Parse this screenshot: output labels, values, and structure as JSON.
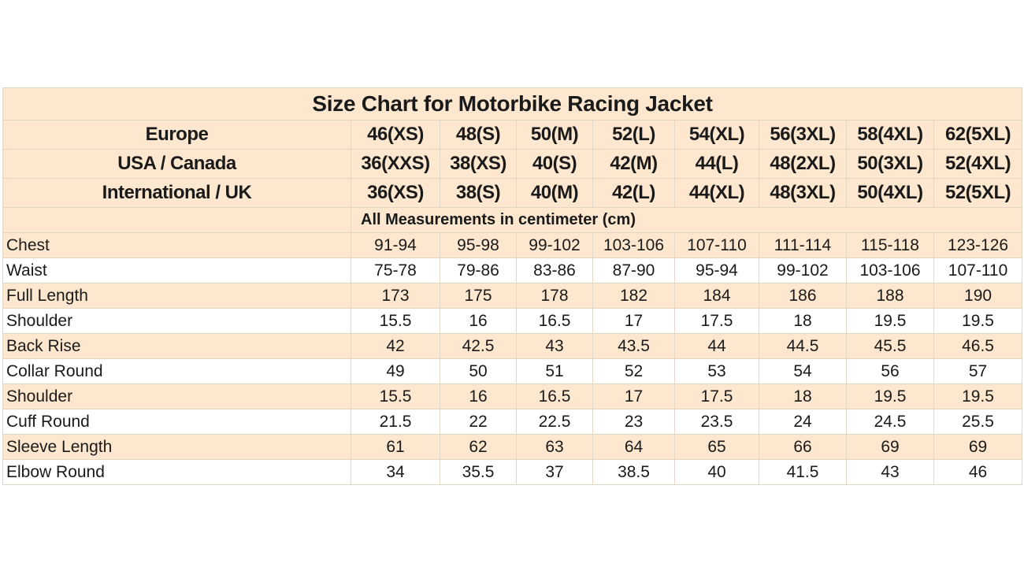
{
  "title": "Size Chart for Motorbike Racing Jacket",
  "size_rows": [
    {
      "label": "Europe",
      "sizes": [
        "46(XS)",
        "48(S)",
        "50(M)",
        "52(L)",
        "54(XL)",
        "56(3XL)",
        "58(4XL)",
        "62(5XL)"
      ]
    },
    {
      "label": "USA / Canada",
      "sizes": [
        "36(XXS)",
        "38(XS)",
        "40(S)",
        "42(M)",
        "44(L)",
        "48(2XL)",
        "50(3XL)",
        "52(4XL)"
      ]
    },
    {
      "label": "International / UK",
      "sizes": [
        "36(XS)",
        "38(S)",
        "40(M)",
        "42(L)",
        "44(XL)",
        "48(3XL)",
        "50(4XL)",
        "52(5XL)"
      ]
    }
  ],
  "units_note": "All Measurements in centimeter (cm)",
  "measurements": [
    {
      "label": "Chest",
      "values": [
        "91-94",
        "95-98",
        "99-102",
        "103-106",
        "107-110",
        "111-114",
        "115-118",
        "123-126"
      ]
    },
    {
      "label": "Waist",
      "values": [
        "75-78",
        "79-86",
        "83-86",
        "87-90",
        "95-94",
        "99-102",
        "103-106",
        "107-110"
      ]
    },
    {
      "label": "Full Length",
      "values": [
        "173",
        "175",
        "178",
        "182",
        "184",
        "186",
        "188",
        "190"
      ]
    },
    {
      "label": "Shoulder",
      "values": [
        "15.5",
        "16",
        "16.5",
        "17",
        "17.5",
        "18",
        "19.5",
        "19.5"
      ]
    },
    {
      "label": "Back Rise",
      "values": [
        "42",
        "42.5",
        "43",
        "43.5",
        "44",
        "44.5",
        "45.5",
        "46.5"
      ]
    },
    {
      "label": "Collar Round",
      "values": [
        "49",
        "50",
        "51",
        "52",
        "53",
        "54",
        "56",
        "57"
      ]
    },
    {
      "label": "Shoulder",
      "values": [
        "15.5",
        "16",
        "16.5",
        "17",
        "17.5",
        "18",
        "19.5",
        "19.5"
      ]
    },
    {
      "label": "Cuff Round",
      "values": [
        "21.5",
        "22",
        "22.5",
        "23",
        "23.5",
        "24",
        "24.5",
        "25.5"
      ]
    },
    {
      "label": "Sleeve Length",
      "values": [
        "61",
        "62",
        "63",
        "64",
        "65",
        "66",
        "69",
        "69"
      ]
    },
    {
      "label": "Elbow Round",
      "values": [
        "34",
        "35.5",
        "37",
        "38.5",
        "40",
        "41.5",
        "43",
        "46"
      ]
    }
  ],
  "colors": {
    "band": "#fde8cf",
    "plain": "#ffffff",
    "grid": "#e3d6c6"
  }
}
